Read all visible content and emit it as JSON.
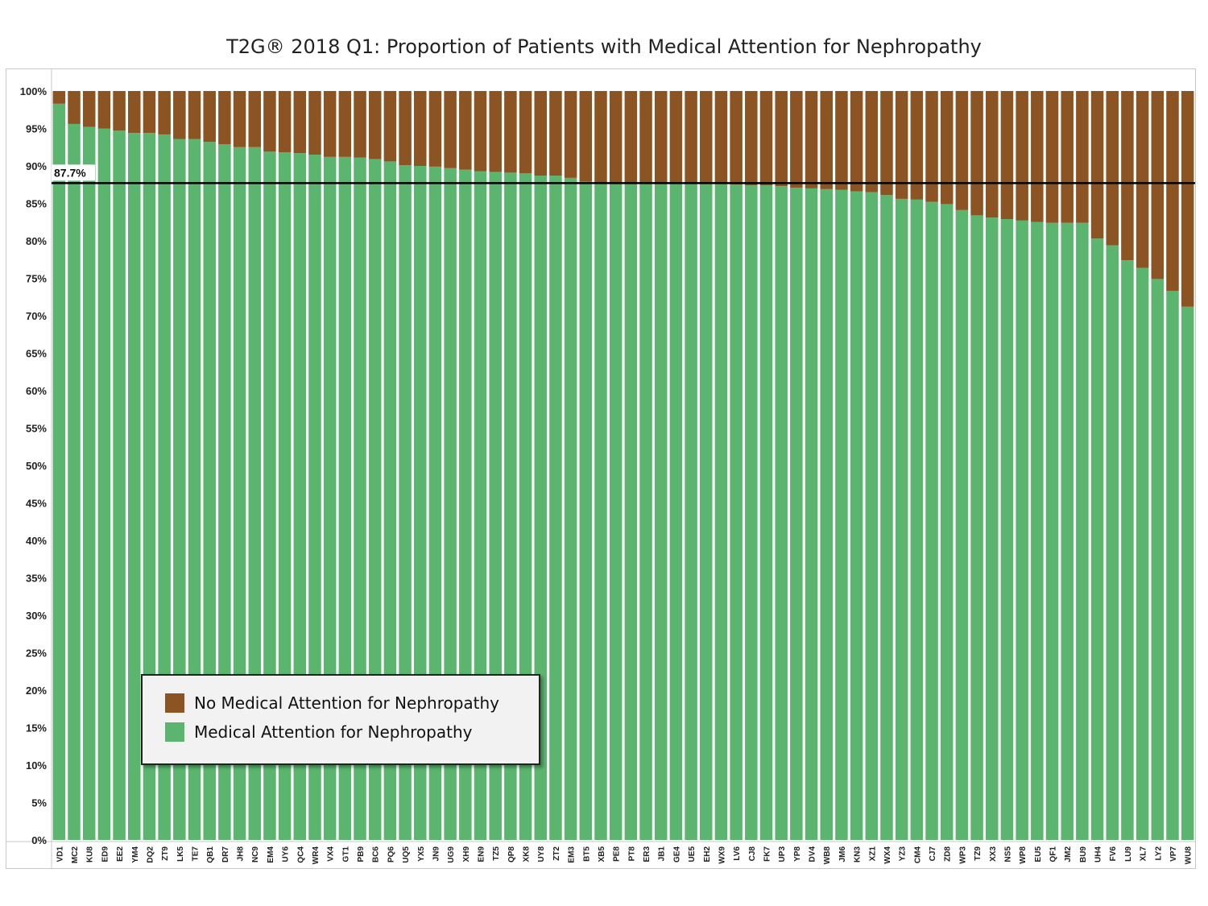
{
  "chart_data": {
    "type": "bar",
    "stacked": true,
    "title": "T2G® 2018 Q1: Proportion of Patients with Medical Attention for Nephropathy",
    "xlabel": "",
    "ylabel": "",
    "ylim": [
      0,
      100
    ],
    "y_ticks": [
      "0%",
      "5%",
      "10%",
      "15%",
      "20%",
      "25%",
      "30%",
      "35%",
      "40%",
      "45%",
      "50%",
      "55%",
      "60%",
      "65%",
      "70%",
      "75%",
      "80%",
      "85%",
      "90%",
      "95%",
      "100%"
    ],
    "grid": false,
    "legend_position": "bottom-left",
    "categories": [
      "VD1",
      "MC2",
      "KU8",
      "ED9",
      "EE2",
      "YM4",
      "DQ2",
      "ZT9",
      "LK5",
      "TE7",
      "QB1",
      "DR7",
      "JH8",
      "NC9",
      "EM4",
      "UY6",
      "QC4",
      "WR4",
      "VX4",
      "GT1",
      "PB9",
      "BC6",
      "PQ6",
      "UQ5",
      "YX5",
      "JN9",
      "UG9",
      "XH9",
      "EN9",
      "TZ5",
      "QP8",
      "XK8",
      "UY8",
      "ZT2",
      "EM3",
      "BT5",
      "XB5",
      "PE8",
      "PT8",
      "ER3",
      "JB1",
      "GE4",
      "UE5",
      "EH2",
      "WX9",
      "LV6",
      "CJ8",
      "FK7",
      "UP3",
      "YP8",
      "DV4",
      "WB8",
      "JM6",
      "KN3",
      "XZ1",
      "WX4",
      "YZ3",
      "CM4",
      "CJ7",
      "ZD8",
      "WP3",
      "TZ9",
      "XX3",
      "NS5",
      "WP8",
      "EU5",
      "QF1",
      "JM2",
      "BU9",
      "UH4",
      "FV6",
      "LU9",
      "XL7",
      "LY2",
      "VP7",
      "WU8"
    ],
    "series": [
      {
        "name": "Medical Attention for Nephropathy",
        "color": "#5bb56e",
        "values": [
          98.3,
          95.6,
          95.2,
          95.0,
          94.7,
          94.4,
          94.4,
          94.2,
          93.6,
          93.6,
          93.2,
          92.9,
          92.5,
          92.5,
          91.9,
          91.8,
          91.7,
          91.5,
          91.2,
          91.2,
          91.1,
          90.9,
          90.6,
          90.1,
          90.0,
          89.9,
          89.7,
          89.5,
          89.3,
          89.2,
          89.1,
          89.0,
          88.7,
          88.7,
          88.4,
          87.9,
          87.8,
          87.8,
          87.8,
          87.8,
          87.7,
          87.7,
          87.7,
          87.7,
          87.6,
          87.5,
          87.4,
          87.4,
          87.3,
          87.1,
          87.0,
          86.9,
          86.8,
          86.6,
          86.5,
          86.1,
          85.6,
          85.5,
          85.2,
          84.9,
          84.1,
          83.4,
          83.1,
          82.9,
          82.7,
          82.5,
          82.4,
          82.4,
          82.4,
          80.3,
          79.4,
          77.4,
          76.4,
          74.9,
          73.3,
          71.2
        ]
      },
      {
        "name": "No Medical Attention for Nephropathy",
        "color": "#8b5422",
        "values": [
          1.7,
          4.4,
          4.8,
          5.0,
          5.3,
          5.6,
          5.6,
          5.8,
          6.4,
          6.4,
          6.8,
          7.1,
          7.5,
          7.5,
          8.1,
          8.2,
          8.3,
          8.5,
          8.8,
          8.8,
          8.9,
          9.1,
          9.4,
          9.9,
          10.0,
          10.1,
          10.3,
          10.5,
          10.7,
          10.8,
          10.9,
          11.0,
          11.3,
          11.3,
          11.6,
          12.1,
          12.2,
          12.2,
          12.2,
          12.2,
          12.3,
          12.3,
          12.3,
          12.3,
          12.4,
          12.5,
          12.6,
          12.6,
          12.7,
          12.9,
          13.0,
          13.1,
          13.2,
          13.4,
          13.5,
          13.9,
          14.4,
          14.5,
          14.8,
          15.1,
          15.9,
          16.6,
          16.9,
          17.1,
          17.3,
          17.5,
          17.6,
          17.6,
          17.6,
          19.7,
          20.6,
          22.6,
          23.6,
          25.1,
          26.7,
          28.8
        ]
      }
    ],
    "reference_line": {
      "value": 87.7,
      "label": "87.7%",
      "color": "#000000"
    }
  },
  "legend": {
    "items": [
      {
        "label": "No Medical Attention for Nephropathy",
        "color": "#8b5422"
      },
      {
        "label": "Medical Attention for Nephropathy",
        "color": "#5bb56e"
      }
    ]
  }
}
